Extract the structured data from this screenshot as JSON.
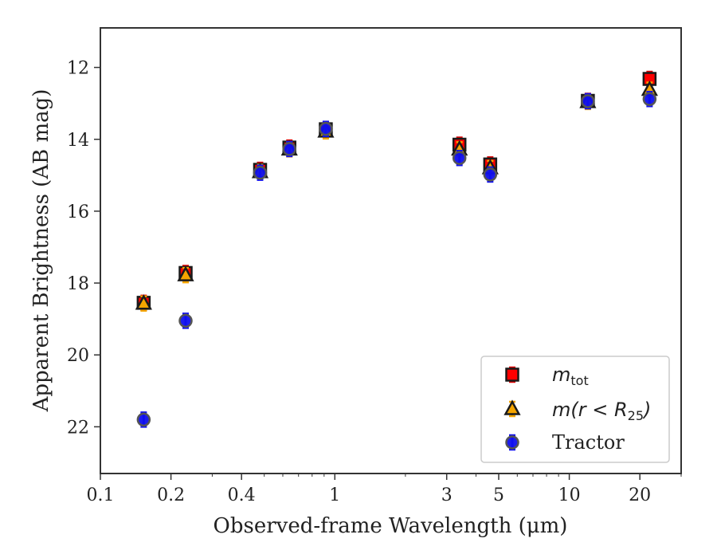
{
  "chart_data": {
    "type": "scatter",
    "xlabel": "Observed-frame Wavelength (μm)",
    "ylabel": "Apparent Brightness (AB mag)",
    "xscale": "log",
    "xlim": [
      0.1,
      30
    ],
    "ylim": [
      23.3,
      10.9
    ],
    "y_inverted": true,
    "grid": false,
    "legend_position": "lower-right",
    "x_ticks": [
      {
        "value": 0.1,
        "label": "0.1"
      },
      {
        "value": 0.2,
        "label": "0.2"
      },
      {
        "value": 0.4,
        "label": "0.4"
      },
      {
        "value": 1,
        "label": "1"
      },
      {
        "value": 3,
        "label": "3"
      },
      {
        "value": 5,
        "label": "5"
      },
      {
        "value": 10,
        "label": "10"
      },
      {
        "value": 20,
        "label": "20"
      }
    ],
    "y_ticks": [
      {
        "value": 12,
        "label": "12"
      },
      {
        "value": 14,
        "label": "14"
      },
      {
        "value": 16,
        "label": "16"
      },
      {
        "value": 18,
        "label": "18"
      },
      {
        "value": 20,
        "label": "20"
      },
      {
        "value": 22,
        "label": "22"
      }
    ],
    "x": [
      0.153,
      0.231,
      0.48,
      0.64,
      0.915,
      3.4,
      4.6,
      12.0,
      22.0
    ],
    "series": [
      {
        "name": "m_tot",
        "legend_label": "m",
        "legend_subscript": "tot",
        "marker": "square",
        "color": "#ff0000",
        "edge_color": "#1a1a1a",
        "errorbar_color": "#dd0000",
        "values": [
          18.55,
          17.72,
          14.85,
          14.23,
          13.72,
          14.15,
          14.7,
          12.93,
          12.32
        ]
      },
      {
        "name": "m(r < R25)",
        "legend_label": "m(r < R",
        "legend_subscript": "25",
        "legend_suffix": ")",
        "marker": "triangle",
        "color": "#f5a500",
        "edge_color": "#1a1a1a",
        "errorbar_color": "#f5a500",
        "values": [
          18.57,
          17.78,
          14.91,
          14.28,
          13.78,
          14.28,
          14.8,
          12.96,
          12.62
        ]
      },
      {
        "name": "Tractor",
        "legend_label": "Tractor",
        "marker": "circle",
        "color": "#1010ee",
        "edge_color": "#555555",
        "errorbar_color": "#1010ee",
        "values": [
          21.8,
          19.05,
          14.93,
          14.27,
          13.71,
          14.52,
          14.98,
          12.94,
          12.88
        ]
      }
    ]
  }
}
